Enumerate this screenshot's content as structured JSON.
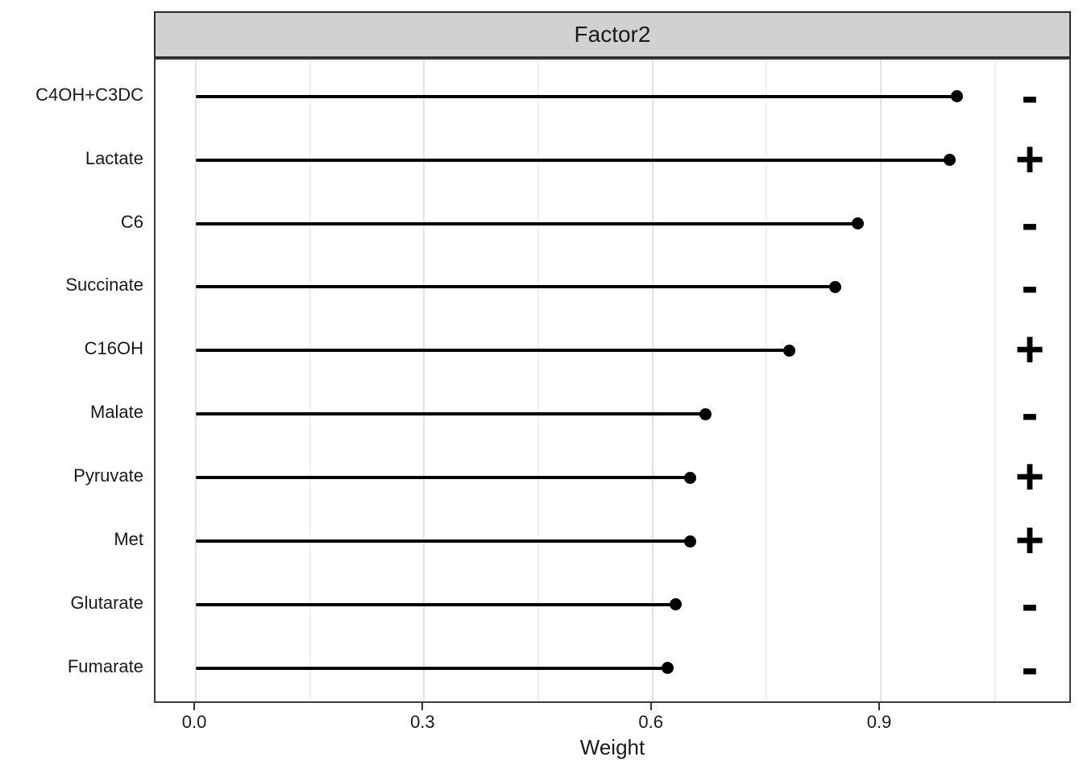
{
  "figure": {
    "facet_title": "Factor2"
  },
  "chart_data": {
    "type": "lollipop",
    "orientation": "horizontal",
    "title": "Factor2",
    "xlabel": "Weight",
    "ylabel": "",
    "categories": [
      "C4OH+C3DC",
      "Lactate",
      "C6",
      "Succinate",
      "C16OH",
      "Malate",
      "Pyruvate",
      "Met",
      "Glutarate",
      "Fumarate"
    ],
    "values": [
      1.0,
      0.99,
      0.87,
      0.84,
      0.78,
      0.67,
      0.65,
      0.65,
      0.63,
      0.62
    ],
    "signs": [
      "-",
      "+",
      "-",
      "-",
      "+",
      "-",
      "+",
      "+",
      "-",
      "-"
    ],
    "x_ticks": {
      "values": [
        0,
        0.3,
        0.6,
        0.9
      ],
      "labels": [
        "0.0",
        "0.3",
        "0.6",
        "0.9"
      ]
    },
    "x_minor_ticks": [
      0.15,
      0.45,
      0.75,
      1.05
    ],
    "xlim": [
      -0.053,
      1.152
    ],
    "grid": "vertical-only",
    "legend": "none"
  },
  "colors": {
    "strip_background": "#D1D1D1",
    "strip_border": "#2b2b2b",
    "panel_border": "#3c3c3c",
    "grid_major": "#e2e2e2",
    "grid_minor": "#f0f0f0",
    "stem_and_dot": "#000000",
    "text": "#1a1a1a",
    "background": "#ffffff"
  }
}
